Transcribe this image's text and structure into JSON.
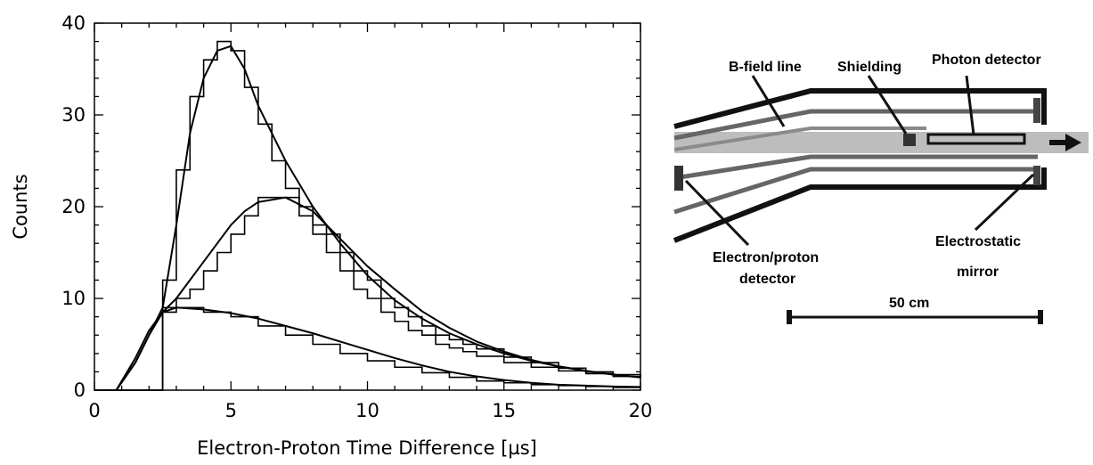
{
  "chart_data": {
    "type": "line",
    "xlabel": "Electron-Proton Time Difference [µs]",
    "ylabel": "Counts",
    "xlim": [
      0,
      20
    ],
    "ylim": [
      0,
      40
    ],
    "x_ticks": [
      "0",
      "5",
      "10",
      "15",
      "20"
    ],
    "y_ticks": [
      "0",
      "10",
      "20",
      "30",
      "40"
    ],
    "grid": false,
    "series": [
      {
        "style": "histogram",
        "x": [
          2.5,
          3.0,
          3.5,
          4.0,
          4.5,
          5.0,
          5.5,
          6.0,
          6.5,
          7.0,
          7.5,
          8.0,
          8.5,
          9.0,
          9.5,
          10.0,
          10.5,
          11.0,
          11.5,
          12.0,
          12.5,
          13.0,
          13.5,
          14.0,
          15.0,
          16.0,
          17.0,
          18.0,
          19.0,
          20.0
        ],
        "y": [
          12,
          24,
          32,
          36,
          38,
          37,
          33,
          29,
          25,
          22,
          19,
          17,
          15,
          13,
          11,
          10,
          8.5,
          7.5,
          6.5,
          6,
          5,
          4.6,
          4.2,
          3.7,
          3,
          2.5,
          2.1,
          1.8,
          1.5,
          1.3
        ]
      },
      {
        "style": "histogram",
        "x": [
          2.5,
          3.0,
          3.5,
          4.0,
          4.5,
          5.0,
          5.5,
          6.0,
          6.5,
          7.0,
          7.5,
          8.0,
          8.5,
          9.0,
          9.5,
          10.0,
          10.5,
          11.0,
          11.5,
          12.0,
          12.5,
          13.0,
          13.5,
          14.0,
          15.0,
          16.0,
          17.0,
          18.0,
          19.0,
          20.0
        ],
        "y": [
          9,
          10,
          11,
          13,
          15,
          17,
          19,
          21,
          21,
          21,
          20,
          18,
          17,
          15,
          13,
          12,
          10,
          9,
          8,
          7,
          6,
          5.5,
          5,
          4.5,
          3.6,
          3,
          2.4,
          2,
          1.7,
          1.5
        ]
      },
      {
        "style": "histogram",
        "x": [
          2.5,
          3.0,
          4.0,
          5.0,
          6.0,
          7.0,
          8.0,
          9.0,
          10.0,
          11.0,
          12.0,
          13.0,
          14.0,
          15.0,
          16.0,
          17.0,
          18.0,
          19.0,
          20.0
        ],
        "y": [
          8.5,
          9,
          8.5,
          8,
          7,
          6,
          5,
          4,
          3.2,
          2.5,
          1.9,
          1.4,
          1,
          0.8,
          0.6,
          0.5,
          0.4,
          0.3,
          0.3
        ]
      },
      {
        "style": "smooth",
        "x": [
          0,
          0.8,
          1.5,
          2.0,
          2.5,
          3.0,
          3.5,
          4.0,
          4.5,
          5.0,
          5.5,
          6.0,
          7.0,
          8.0,
          9.0,
          10.0,
          11.0,
          12.0,
          13.0,
          14.0,
          15.0,
          16.0,
          17.0,
          18.0,
          19.0,
          20.0
        ],
        "y": [
          0,
          0,
          3,
          6,
          9,
          18,
          28,
          34,
          37,
          37.5,
          35,
          31,
          25,
          20,
          16,
          12.5,
          9.8,
          7.8,
          6.2,
          5,
          4,
          3.2,
          2.6,
          2.1,
          1.7,
          1.4
        ]
      },
      {
        "style": "smooth",
        "x": [
          0,
          0.8,
          1.5,
          2.0,
          2.5,
          3.0,
          3.5,
          4.0,
          4.5,
          5.0,
          5.5,
          6.0,
          7.0,
          8.0,
          9.0,
          10.0,
          11.0,
          12.0,
          13.0,
          14.0,
          15.0,
          16.0,
          17.0,
          18.0,
          19.0,
          20.0
        ],
        "y": [
          0,
          0,
          3,
          6,
          8.5,
          10,
          12,
          14,
          16,
          18,
          19.5,
          20.5,
          21,
          19.5,
          16.5,
          13.5,
          11,
          8.6,
          6.8,
          5.3,
          4.2,
          3.3,
          2.6,
          2.1,
          1.7,
          1.4
        ]
      },
      {
        "style": "smooth",
        "x": [
          0,
          0.8,
          1.5,
          2.0,
          2.5,
          3.0,
          4.0,
          5.0,
          6.0,
          7.0,
          8.0,
          9.0,
          10.0,
          11.0,
          12.0,
          13.0,
          14.0,
          15.0,
          16.0,
          17.0,
          18.0,
          19.0,
          20.0
        ],
        "y": [
          0,
          0,
          3.5,
          6.5,
          8.5,
          9,
          8.8,
          8.4,
          7.8,
          7,
          6.2,
          5.3,
          4.4,
          3.5,
          2.7,
          2,
          1.5,
          1.1,
          0.8,
          0.6,
          0.5,
          0.4,
          0.35
        ]
      }
    ]
  },
  "diagram": {
    "labels": {
      "b_field_line": "B-field line",
      "shielding": "Shielding",
      "photon_detector": "Photon detector",
      "electron_proton_detector_1": "Electron/proton",
      "electron_proton_detector_2": "detector",
      "electrostatic_mirror_1": "Electrostatic",
      "electrostatic_mirror_2": "mirror",
      "scale_bar": "50 cm"
    }
  }
}
